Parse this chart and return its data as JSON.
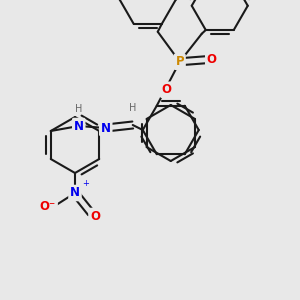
{
  "bg_color": "#e8e8e8",
  "bond_color": "#1a1a1a",
  "bond_width": 1.5,
  "atom_colors": {
    "N": "#0000ee",
    "O": "#ee0000",
    "P": "#cc8800",
    "H": "#666666"
  },
  "figsize": [
    3.0,
    3.0
  ],
  "dpi": 100,
  "xlim": [
    0,
    300
  ],
  "ylim": [
    0,
    300
  ],
  "scale": 1.0
}
